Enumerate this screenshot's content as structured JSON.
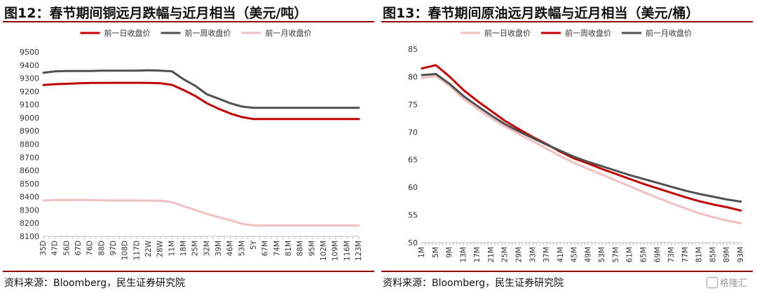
{
  "left": {
    "title": "图12：春节期间铜远月跌幅与近月相当（美元/吨）",
    "source": "资料来源：Bloomberg，民生证券研究院"
  },
  "right": {
    "title": "图13：春节期间原油远月跌幅与近月相当（美元/桶）",
    "source": "资料来源：Bloomberg，民生证券研究院",
    "watermark": "格隆汇"
  },
  "colors": {
    "dark_red": "#c00000",
    "dark_gray": "#505050",
    "pink": "#f0c0c0",
    "rule": "#8b0000"
  },
  "chart_data": [
    {
      "type": "line",
      "title": "",
      "legend_position": "top",
      "ylim": [
        8100,
        9500
      ],
      "yticks": [
        8100,
        8200,
        8300,
        8400,
        8500,
        8600,
        8700,
        8800,
        8900,
        9000,
        9100,
        9200,
        9300,
        9400,
        9500
      ],
      "categories": [
        "35D",
        "47D",
        "56D",
        "67D",
        "76D",
        "88D",
        "97D",
        "108D",
        "117D",
        "22W",
        "28W",
        "11M",
        "18M",
        "25M",
        "32M",
        "39M",
        "46M",
        "53M",
        "5Y",
        "67M",
        "74M",
        "81M",
        "88M",
        "95M",
        "102M",
        "109M",
        "116M",
        "123M"
      ],
      "series": [
        {
          "name": "前一日收盘价",
          "color": "#c00000",
          "values": [
            9248,
            9255,
            9258,
            9262,
            9264,
            9264,
            9265,
            9265,
            9265,
            9264,
            9262,
            9250,
            9210,
            9165,
            9110,
            9068,
            9032,
            9005,
            8990,
            8990,
            8990,
            8990,
            8990,
            8990,
            8990,
            8990,
            8990,
            8990
          ]
        },
        {
          "name": "前一周收盘价",
          "color": "#505050",
          "values": [
            9342,
            9352,
            9355,
            9355,
            9355,
            9358,
            9358,
            9358,
            9358,
            9360,
            9358,
            9352,
            9292,
            9242,
            9178,
            9145,
            9110,
            9085,
            9075,
            9075,
            9075,
            9075,
            9075,
            9075,
            9075,
            9075,
            9075,
            9075
          ]
        },
        {
          "name": "前一月收盘价",
          "color": "#f0c0c0",
          "values": [
            8372,
            8375,
            8376,
            8377,
            8376,
            8373,
            8372,
            8372,
            8372,
            8371,
            8370,
            8360,
            8328,
            8300,
            8270,
            8245,
            8222,
            8195,
            8182,
            8182,
            8182,
            8182,
            8182,
            8182,
            8182,
            8182,
            8182,
            8182
          ]
        }
      ]
    },
    {
      "type": "line",
      "title": "",
      "legend_position": "top",
      "ylim": [
        50,
        85
      ],
      "yticks": [
        50,
        55,
        60,
        65,
        70,
        75,
        80,
        85
      ],
      "categories": [
        "1M",
        "5M",
        "9M",
        "13M",
        "17M",
        "21M",
        "25M",
        "29M",
        "33M",
        "37M",
        "41M",
        "45M",
        "49M",
        "53M",
        "57M",
        "61M",
        "65M",
        "69M",
        "73M",
        "77M",
        "81M",
        "85M",
        "89M",
        "93M"
      ],
      "series": [
        {
          "name": "前一日收盘价",
          "color": "#f0c0c0",
          "values": [
            79.8,
            80.1,
            78.3,
            76.0,
            74.2,
            72.5,
            71.0,
            69.6,
            68.3,
            67.0,
            65.6,
            64.4,
            63.3,
            62.3,
            61.2,
            60.2,
            59.1,
            58.1,
            57.1,
            56.2,
            55.3,
            54.6,
            54.0,
            53.5
          ]
        },
        {
          "name": "前一周收盘价",
          "color": "#c00000",
          "values": [
            81.5,
            82.1,
            80.0,
            77.6,
            75.6,
            73.8,
            72.0,
            70.5,
            69.1,
            67.8,
            66.4,
            65.2,
            64.3,
            63.3,
            62.4,
            61.5,
            60.6,
            59.8,
            59.0,
            58.2,
            57.5,
            56.9,
            56.4,
            55.8
          ]
        },
        {
          "name": "前一月收盘价",
          "color": "#505050",
          "values": [
            80.3,
            80.5,
            78.7,
            76.5,
            74.7,
            73.0,
            71.4,
            70.1,
            68.9,
            67.7,
            66.6,
            65.5,
            64.6,
            63.8,
            63.0,
            62.2,
            61.5,
            60.8,
            60.1,
            59.4,
            58.8,
            58.3,
            57.8,
            57.4
          ]
        }
      ]
    }
  ]
}
